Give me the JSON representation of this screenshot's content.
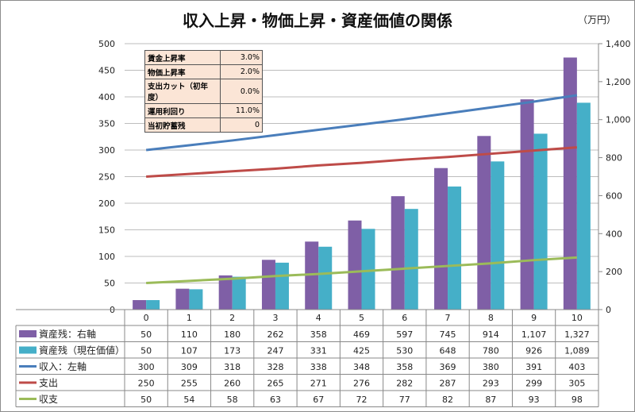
{
  "title": "収入上昇・物価上昇・資産価値の関係",
  "unit": "（万円）",
  "parameters": [
    {
      "label": "賃金上昇率",
      "value": "3.0%"
    },
    {
      "label": "物価上昇率",
      "value": "2.0%"
    },
    {
      "label": "支出カット（初年度）",
      "value": "0.0%"
    },
    {
      "label": "運用利回り",
      "value": "11.0%"
    },
    {
      "label": "当初貯蓄残",
      "value": "0"
    }
  ],
  "chart_data": {
    "type": "bar+line",
    "categories": [
      "0",
      "1",
      "2",
      "3",
      "4",
      "5",
      "6",
      "7",
      "8",
      "9",
      "10"
    ],
    "y_left": {
      "range": [
        0,
        500
      ],
      "ticks": [
        "0",
        "50",
        "100",
        "150",
        "200",
        "250",
        "300",
        "350",
        "400",
        "450",
        "500"
      ]
    },
    "y_right": {
      "range": [
        0,
        1400
      ],
      "ticks": [
        "0",
        "200",
        "400",
        "600",
        "800",
        "1,000",
        "1,200",
        "1,400"
      ]
    },
    "grid": true,
    "legend": "data-table",
    "series": [
      {
        "name": "資産残：右軸",
        "kind": "bar",
        "axis": "right",
        "color": "#7f5fa6",
        "values": [
          50,
          110,
          180,
          262,
          358,
          469,
          597,
          745,
          914,
          1107,
          1327
        ],
        "labels": [
          "50",
          "110",
          "180",
          "262",
          "358",
          "469",
          "597",
          "745",
          "914",
          "1,107",
          "1,327"
        ]
      },
      {
        "name": "資産残（現在価値）",
        "kind": "bar",
        "axis": "right",
        "color": "#45afc8",
        "values": [
          50,
          107,
          173,
          247,
          331,
          425,
          530,
          648,
          780,
          926,
          1089
        ],
        "labels": [
          "50",
          "107",
          "173",
          "247",
          "331",
          "425",
          "530",
          "648",
          "780",
          "926",
          "1,089"
        ]
      },
      {
        "name": "収入：左軸",
        "kind": "line",
        "axis": "left",
        "color": "#4a7ebb",
        "values": [
          300,
          309,
          318,
          328,
          338,
          348,
          358,
          369,
          380,
          391,
          403
        ],
        "labels": [
          "300",
          "309",
          "318",
          "328",
          "338",
          "348",
          "358",
          "369",
          "380",
          "391",
          "403"
        ]
      },
      {
        "name": "支出",
        "kind": "line",
        "axis": "left",
        "color": "#be4b48",
        "values": [
          250,
          255,
          260,
          265,
          271,
          276,
          282,
          287,
          293,
          299,
          305
        ],
        "labels": [
          "250",
          "255",
          "260",
          "265",
          "271",
          "276",
          "282",
          "287",
          "293",
          "299",
          "305"
        ]
      },
      {
        "name": "収支",
        "kind": "line",
        "axis": "left",
        "color": "#9bbb59",
        "values": [
          50,
          54,
          58,
          63,
          67,
          72,
          77,
          82,
          87,
          93,
          98
        ],
        "labels": [
          "50",
          "54",
          "58",
          "63",
          "67",
          "72",
          "77",
          "82",
          "87",
          "93",
          "98"
        ]
      }
    ]
  }
}
